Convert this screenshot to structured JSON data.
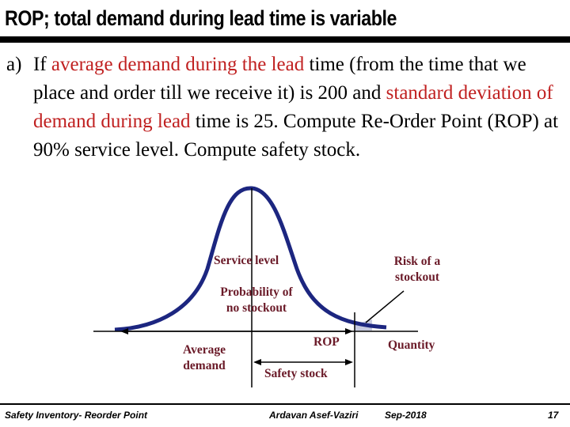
{
  "slide": {
    "title": "ROP; total demand during lead time is variable",
    "question": {
      "label": "a)",
      "parts": [
        {
          "text": "If ",
          "highlight": false
        },
        {
          "text": "average demand during the lead",
          "highlight": true
        },
        {
          "text": " time (from the time that we place and order till we receive it) is 200 and ",
          "highlight": false
        },
        {
          "text": "standard deviation of demand during lead",
          "highlight": true
        },
        {
          "text": " time is 25.  Compute Re-Order Point (ROP) at 90% service level. Compute safety stock.",
          "highlight": false
        }
      ]
    },
    "figure": {
      "service_level": "Service level",
      "prob_line1": "Probability of",
      "prob_line2": "no stockout",
      "risk_line1": "Risk of a",
      "risk_line2": "stockout",
      "rop": "ROP",
      "quantity": "Quantity",
      "average_line1": "Average",
      "average_line2": "demand",
      "safety_stock": "Safety stock"
    },
    "footer": {
      "left": "Safety Inventory- Reorder Point",
      "author": "Ardavan Asef-Vaziri",
      "date": "Sep-2018",
      "page": "17"
    }
  },
  "colors": {
    "curve": "#1c2680",
    "highlight": "#c02020",
    "label": "#6a1a28"
  }
}
